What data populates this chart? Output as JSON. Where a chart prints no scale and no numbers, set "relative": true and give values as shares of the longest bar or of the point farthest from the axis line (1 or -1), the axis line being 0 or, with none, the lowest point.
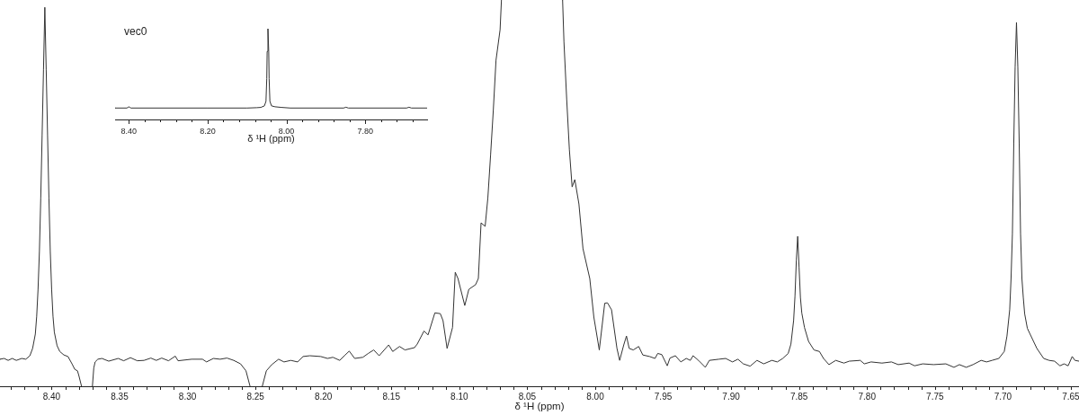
{
  "chart_data": [
    {
      "type": "line",
      "xlabel": "δ ¹H (ppm)",
      "relative": true,
      "xlim": [
        8.438,
        7.644
      ],
      "xticks": [
        {
          "value": 8.43,
          "label": null
        },
        {
          "value": 8.42,
          "label": null
        },
        {
          "value": 8.41,
          "label": null
        },
        {
          "value": 8.4,
          "label": "8.40"
        },
        {
          "value": 8.39,
          "label": null
        },
        {
          "value": 8.38,
          "label": null
        },
        {
          "value": 8.37,
          "label": null
        },
        {
          "value": 8.36,
          "label": null
        },
        {
          "value": 8.35,
          "label": "8.35"
        },
        {
          "value": 8.34,
          "label": null
        },
        {
          "value": 8.33,
          "label": null
        },
        {
          "value": 8.32,
          "label": null
        },
        {
          "value": 8.31,
          "label": null
        },
        {
          "value": 8.3,
          "label": "8.30"
        },
        {
          "value": 8.29,
          "label": null
        },
        {
          "value": 8.28,
          "label": null
        },
        {
          "value": 8.27,
          "label": null
        },
        {
          "value": 8.26,
          "label": null
        },
        {
          "value": 8.25,
          "label": "8.25"
        },
        {
          "value": 8.24,
          "label": null
        },
        {
          "value": 8.23,
          "label": null
        },
        {
          "value": 8.22,
          "label": null
        },
        {
          "value": 8.21,
          "label": null
        },
        {
          "value": 8.2,
          "label": "8.20"
        },
        {
          "value": 8.19,
          "label": null
        },
        {
          "value": 8.18,
          "label": null
        },
        {
          "value": 8.17,
          "label": null
        },
        {
          "value": 8.16,
          "label": null
        },
        {
          "value": 8.15,
          "label": "8.15"
        },
        {
          "value": 8.14,
          "label": null
        },
        {
          "value": 8.13,
          "label": null
        },
        {
          "value": 8.12,
          "label": null
        },
        {
          "value": 8.11,
          "label": null
        },
        {
          "value": 8.1,
          "label": "8.10"
        },
        {
          "value": 8.09,
          "label": null
        },
        {
          "value": 8.08,
          "label": null
        },
        {
          "value": 8.07,
          "label": null
        },
        {
          "value": 8.06,
          "label": null
        },
        {
          "value": 8.05,
          "label": "8.05"
        },
        {
          "value": 8.04,
          "label": null
        },
        {
          "value": 8.03,
          "label": null
        },
        {
          "value": 8.02,
          "label": null
        },
        {
          "value": 8.01,
          "label": null
        },
        {
          "value": 8.0,
          "label": "8.00"
        },
        {
          "value": 7.99,
          "label": null
        },
        {
          "value": 7.98,
          "label": null
        },
        {
          "value": 7.97,
          "label": null
        },
        {
          "value": 7.96,
          "label": null
        },
        {
          "value": 7.95,
          "label": "7.95"
        },
        {
          "value": 7.94,
          "label": null
        },
        {
          "value": 7.93,
          "label": null
        },
        {
          "value": 7.92,
          "label": null
        },
        {
          "value": 7.91,
          "label": null
        },
        {
          "value": 7.9,
          "label": "7.90"
        },
        {
          "value": 7.89,
          "label": null
        },
        {
          "value": 7.88,
          "label": null
        },
        {
          "value": 7.87,
          "label": null
        },
        {
          "value": 7.86,
          "label": null
        },
        {
          "value": 7.85,
          "label": "7.85"
        },
        {
          "value": 7.84,
          "label": null
        },
        {
          "value": 7.83,
          "label": null
        },
        {
          "value": 7.82,
          "label": null
        },
        {
          "value": 7.81,
          "label": null
        },
        {
          "value": 7.8,
          "label": "7.80"
        },
        {
          "value": 7.79,
          "label": null
        },
        {
          "value": 7.78,
          "label": null
        },
        {
          "value": 7.77,
          "label": null
        },
        {
          "value": 7.76,
          "label": null
        },
        {
          "value": 7.75,
          "label": "7.75"
        },
        {
          "value": 7.74,
          "label": null
        },
        {
          "value": 7.73,
          "label": null
        },
        {
          "value": 7.72,
          "label": null
        },
        {
          "value": 7.71,
          "label": null
        },
        {
          "value": 7.7,
          "label": "7.70"
        },
        {
          "value": 7.69,
          "label": null
        },
        {
          "value": 7.68,
          "label": null
        },
        {
          "value": 7.67,
          "label": null
        },
        {
          "value": 7.66,
          "label": null
        },
        {
          "value": 7.65,
          "label": "7.65"
        }
      ],
      "x": [
        8.438,
        8.435,
        8.432,
        8.429,
        8.426,
        8.422,
        8.419,
        8.416,
        8.414,
        8.412,
        8.411,
        8.41,
        8.409,
        8.408,
        8.407,
        8.406,
        8.405,
        8.404,
        8.403,
        8.402,
        8.401,
        8.4,
        8.399,
        8.398,
        8.396,
        8.394,
        8.391,
        8.388,
        8.385,
        8.383,
        8.381,
        8.38,
        8.378,
        8.374,
        8.37,
        8.369,
        8.368,
        8.366,
        8.363,
        8.358,
        8.351,
        8.347,
        8.342,
        8.337,
        8.332,
        8.327,
        8.323,
        8.319,
        8.314,
        8.309,
        8.307,
        8.297,
        8.289,
        8.286,
        8.281,
        8.276,
        8.271,
        8.266,
        8.261,
        8.257,
        8.254,
        8.25,
        8.245,
        8.242,
        8.238,
        8.233,
        8.229,
        8.224,
        8.219,
        8.215,
        8.21,
        8.202,
        8.197,
        8.193,
        8.188,
        8.184,
        8.181,
        8.177,
        8.171,
        8.167,
        8.163,
        8.159,
        8.152,
        8.149,
        8.144,
        8.14,
        8.133,
        8.131,
        8.126,
        8.123,
        8.118,
        8.114,
        8.112,
        8.109,
        8.105,
        8.103,
        8.101,
        8.096,
        8.093,
        8.088,
        8.086,
        8.084,
        8.081,
        8.079,
        8.077,
        8.075,
        8.073,
        8.07,
        8.069,
        8.047,
        8.024,
        8.023,
        8.021,
        8.019,
        8.017,
        8.015,
        8.012,
        8.009,
        8.004,
        8.001,
        7.997,
        7.993,
        7.991,
        7.988,
        7.984,
        7.982,
        7.979,
        7.977,
        7.975,
        7.972,
        7.968,
        7.965,
        7.96,
        7.956,
        7.954,
        7.951,
        7.947,
        7.945,
        7.941,
        7.937,
        7.933,
        7.93,
        7.928,
        7.924,
        7.919,
        7.916,
        7.909,
        7.904,
        7.899,
        7.895,
        7.891,
        7.886,
        7.881,
        7.876,
        7.87,
        7.866,
        7.862,
        7.858,
        7.856,
        7.854,
        7.853,
        7.852,
        7.851,
        7.85,
        7.849,
        7.848,
        7.846,
        7.843,
        7.839,
        7.835,
        7.832,
        7.828,
        7.823,
        7.817,
        7.813,
        7.805,
        7.802,
        7.797,
        7.789,
        7.782,
        7.777,
        7.769,
        7.765,
        7.759,
        7.751,
        7.742,
        7.736,
        7.732,
        7.727,
        7.722,
        7.716,
        7.712,
        7.708,
        7.703,
        7.699,
        7.697,
        7.695,
        7.694,
        7.693,
        7.692,
        7.691,
        7.69,
        7.689,
        7.688,
        7.687,
        7.686,
        7.685,
        7.684,
        7.682,
        7.68,
        7.675,
        7.67,
        7.666,
        7.662,
        7.658,
        7.655,
        7.652,
        7.649,
        7.647,
        7.644
      ],
      "values": [
        0.07,
        0.072,
        0.067,
        0.072,
        0.067,
        0.072,
        0.07,
        0.079,
        0.098,
        0.135,
        0.181,
        0.251,
        0.349,
        0.488,
        0.651,
        0.819,
        0.981,
        0.819,
        0.651,
        0.488,
        0.349,
        0.251,
        0.181,
        0.14,
        0.105,
        0.09,
        0.081,
        0.077,
        0.058,
        0.044,
        0.04,
        0.028,
        0,
        null,
        0,
        0.047,
        0.063,
        0.07,
        0.072,
        0.065,
        0.072,
        0.066,
        0.074,
        0.066,
        0.067,
        0.073,
        0.067,
        0.073,
        0.066,
        0.078,
        0.066,
        0.07,
        0.07,
        0.063,
        0.072,
        0.07,
        0.073,
        0.067,
        0.058,
        0.04,
        0,
        null,
        0,
        0.04,
        0.056,
        0.07,
        0.063,
        0.067,
        0.063,
        0.077,
        0.079,
        0.077,
        0.072,
        0.075,
        0.067,
        0.081,
        0.091,
        0.072,
        0.075,
        0.085,
        0.094,
        0.079,
        0.107,
        0.09,
        0.103,
        0.094,
        0.1,
        0.109,
        0.143,
        0.133,
        0.19,
        0.188,
        0.17,
        0.098,
        0.152,
        0.295,
        0.279,
        0.209,
        0.251,
        0.263,
        0.279,
        0.423,
        0.414,
        0.488,
        0.598,
        0.714,
        0.844,
        0.923,
        1,
        null,
        1,
        0.891,
        0.744,
        0.612,
        0.516,
        0.535,
        0.472,
        0.356,
        0.279,
        0.179,
        0.094,
        0.215,
        0.216,
        0.198,
        0.098,
        0.067,
        0.107,
        0.13,
        0.098,
        0.094,
        0.103,
        0.081,
        0.077,
        0.072,
        0.085,
        0.082,
        0.053,
        0.073,
        0.079,
        0.063,
        0.072,
        0.067,
        0.079,
        0.067,
        0.049,
        0.067,
        0.07,
        0.072,
        0.063,
        0.07,
        0.058,
        0.052,
        0.067,
        0.058,
        0.067,
        0.063,
        0.072,
        0.085,
        0.109,
        0.17,
        0.233,
        0.326,
        0.388,
        0.309,
        0.23,
        0.19,
        0.152,
        0.116,
        0.094,
        0.09,
        0.072,
        0.056,
        0.067,
        0.06,
        0.065,
        0.067,
        0.058,
        0.063,
        0.06,
        0.063,
        0.056,
        0.06,
        0.053,
        0.058,
        0.056,
        0.058,
        0.049,
        0.056,
        0.049,
        0.056,
        0.067,
        0.063,
        0.067,
        0.072,
        0.09,
        0.13,
        0.198,
        0.279,
        0.395,
        0.628,
        0.826,
        0.942,
        0.826,
        0.628,
        0.395,
        0.279,
        0.23,
        0.188,
        0.15,
        0.135,
        0.098,
        0.072,
        0.067,
        0.065,
        0.053,
        0.058,
        0.053,
        0.077,
        0.067,
        0.065
      ],
      "color": "#333333"
    },
    {
      "type": "line",
      "title": "vec0",
      "xlabel": "δ ¹H (ppm)",
      "relative": true,
      "xlim": [
        8.435,
        7.643
      ],
      "xticks": [
        {
          "value": 8.4,
          "label": "8.40"
        },
        {
          "value": 8.36,
          "label": null
        },
        {
          "value": 8.32,
          "label": null
        },
        {
          "value": 8.28,
          "label": null
        },
        {
          "value": 8.24,
          "label": null
        },
        {
          "value": 8.2,
          "label": "8.20"
        },
        {
          "value": 8.16,
          "label": null
        },
        {
          "value": 8.12,
          "label": null
        },
        {
          "value": 8.08,
          "label": null
        },
        {
          "value": 8.04,
          "label": null
        },
        {
          "value": 8.0,
          "label": "8.00"
        },
        {
          "value": 7.96,
          "label": null
        },
        {
          "value": 7.92,
          "label": null
        },
        {
          "value": 7.88,
          "label": null
        },
        {
          "value": 7.84,
          "label": null
        },
        {
          "value": 7.8,
          "label": "7.80"
        },
        {
          "value": 7.76,
          "label": null
        },
        {
          "value": 7.72,
          "label": null
        },
        {
          "value": 7.68,
          "label": null
        }
      ],
      "x": [
        8.435,
        8.405,
        8.4,
        8.395,
        8.2,
        8.1,
        8.075,
        8.065,
        8.056,
        8.052,
        8.05,
        8.049,
        8.047,
        8.045,
        8.044,
        8.042,
        8.038,
        8.029,
        8.013,
        7.99,
        7.855,
        7.849,
        7.843,
        7.695,
        7.689,
        7.683,
        7.643
      ],
      "values": [
        0.126,
        0.126,
        0.14,
        0.126,
        0.126,
        0.126,
        0.13,
        0.133,
        0.15,
        0.2,
        0.45,
        0.75,
        1,
        0.75,
        0.45,
        0.2,
        0.15,
        0.14,
        0.133,
        0.126,
        0.126,
        0.135,
        0.126,
        0.126,
        0.135,
        0.126,
        0.126
      ],
      "color": "#333333"
    }
  ]
}
